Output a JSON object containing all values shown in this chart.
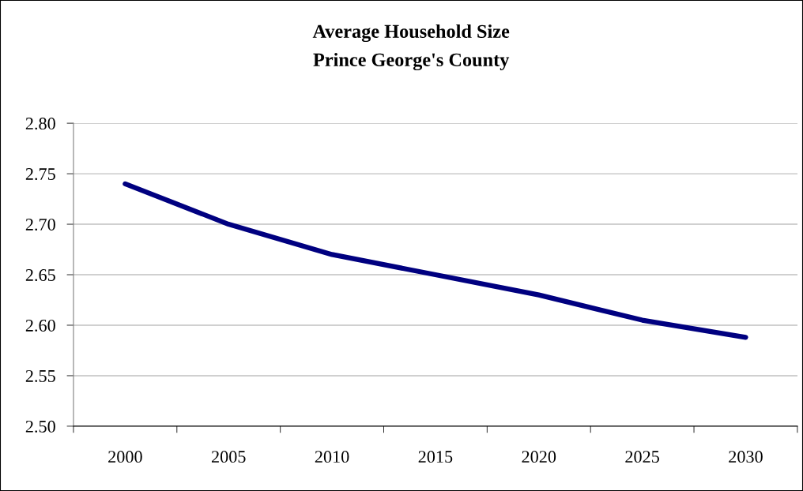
{
  "chart_data": {
    "type": "line",
    "title": "Average Household Size",
    "subtitle": "Prince George's County",
    "categories": [
      "2000",
      "2005",
      "2010",
      "2015",
      "2020",
      "2025",
      "2030"
    ],
    "series": [
      {
        "color": "#000080",
        "values": [
          2.74,
          2.7,
          2.67,
          2.65,
          2.63,
          2.605,
          2.588
        ]
      }
    ],
    "ylim": [
      2.5,
      2.8
    ],
    "yticks": [
      {
        "value": 2.5,
        "label": "2.50"
      },
      {
        "value": 2.55,
        "label": "2.55"
      },
      {
        "value": 2.6,
        "label": "2.60"
      },
      {
        "value": 2.65,
        "label": "2.65"
      },
      {
        "value": 2.7,
        "label": "2.70"
      },
      {
        "value": 2.75,
        "label": "2.75"
      },
      {
        "value": 2.8,
        "label": "2.80"
      }
    ],
    "grid": "y",
    "marker": "none",
    "line_style": "solid"
  }
}
